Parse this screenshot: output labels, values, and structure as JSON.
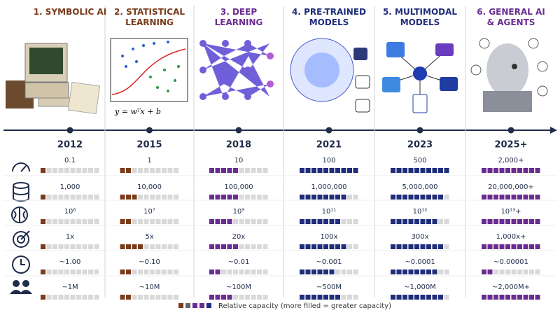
{
  "eras": [
    {
      "title": "1. SYMBOLIC AI",
      "year": "2012",
      "color": "#7a3b1a"
    },
    {
      "title": "2. STATISTICAL LEARNING",
      "year": "2015",
      "color": "#7a3b1a"
    },
    {
      "title": "3. DEEP LEARNING",
      "year": "2018",
      "color": "#6a2c91"
    },
    {
      "title": "4. PRE-TRAINED MODELS",
      "year": "2021",
      "color": "#1f2d7a"
    },
    {
      "title": "5. MULTIMODAL MODELS",
      "year": "2023",
      "color": "#1f2d7a"
    },
    {
      "title": "6. GENERAL AI & AGENTS",
      "year": "2025+",
      "color": "#6a2c91"
    }
  ],
  "formula": "y = wᵀx + b",
  "rows": [
    {
      "cells": [
        {
          "label": "0.1",
          "filled": 1
        },
        {
          "label": "1",
          "filled": 2
        },
        {
          "label": "10",
          "filled": 5
        },
        {
          "label": "100",
          "filled": 10
        },
        {
          "label": "500",
          "filled": 10
        },
        {
          "label": "2,000+",
          "filled": 10
        }
      ]
    },
    {
      "cells": [
        {
          "label": "1,000",
          "filled": 1
        },
        {
          "label": "10,000",
          "filled": 3
        },
        {
          "label": "100,000",
          "filled": 5
        },
        {
          "label": "1,000,000",
          "filled": 8
        },
        {
          "label": "5,000,000",
          "filled": 9
        },
        {
          "label": "20,000,000+",
          "filled": 10
        }
      ]
    },
    {
      "cells": [
        {
          "label": "10⁶",
          "filled": 1
        },
        {
          "label": "10⁷",
          "filled": 2
        },
        {
          "label": "10⁹",
          "filled": 4
        },
        {
          "label": "10¹¹",
          "filled": 7
        },
        {
          "label": "10¹²",
          "filled": 8
        },
        {
          "label": "10¹³+",
          "filled": 10
        }
      ]
    },
    {
      "cells": [
        {
          "label": "1x",
          "filled": 1
        },
        {
          "label": "5x",
          "filled": 4
        },
        {
          "label": "20x",
          "filled": 5
        },
        {
          "label": "100x",
          "filled": 8
        },
        {
          "label": "300x",
          "filled": 9
        },
        {
          "label": "1,000x+",
          "filled": 10
        }
      ]
    },
    {
      "cells": [
        {
          "label": "~1.00",
          "filled": 1
        },
        {
          "label": "~0.10",
          "filled": 2
        },
        {
          "label": "~0.01",
          "filled": 2
        },
        {
          "label": "~0.001",
          "filled": 6
        },
        {
          "label": "~0.0001",
          "filled": 8
        },
        {
          "label": "~0.00001",
          "filled": 2
        }
      ]
    },
    {
      "cells": [
        {
          "label": "~1M",
          "filled": 1
        },
        {
          "label": "~10M",
          "filled": 2
        },
        {
          "label": "~100M",
          "filled": 4
        },
        {
          "label": "~500M",
          "filled": 7
        },
        {
          "label": "~1,000M",
          "filled": 9
        },
        {
          "label": "~2,000M+",
          "filled": 10
        }
      ]
    }
  ],
  "legend": {
    "colors": [
      "#7a3b1a",
      "#666666",
      "#6a2c91",
      "#6a2c91",
      "#1f2d7a"
    ],
    "text": "Relative capacity (more filled = greater capacity)"
  }
}
